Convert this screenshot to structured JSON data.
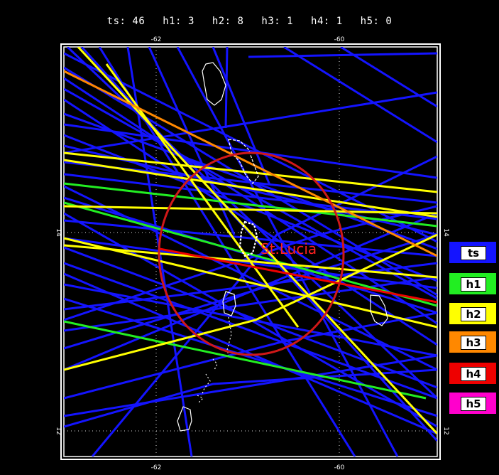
{
  "header": {
    "stats": [
      {
        "label": "ts:",
        "value": "46"
      },
      {
        "label": "h1:",
        "value": "3"
      },
      {
        "label": "h2:",
        "value": "8"
      },
      {
        "label": "h3:",
        "value": "1"
      },
      {
        "label": "h4:",
        "value": "1"
      },
      {
        "label": "h5:",
        "value": "0"
      }
    ]
  },
  "map": {
    "location_label": "St.Lucia",
    "lon_ticks": [
      "-62",
      "-60"
    ],
    "lat_ticks": [
      "14",
      "12"
    ],
    "circle_color": "#d01818",
    "location_label_color": "#ff2020"
  },
  "legend": [
    {
      "label": "ts",
      "color": "#1414ff"
    },
    {
      "label": "h1",
      "color": "#22ee22"
    },
    {
      "label": "h2",
      "color": "#ffff00"
    },
    {
      "label": "h3",
      "color": "#ff8800"
    },
    {
      "label": "h4",
      "color": "#ee0000"
    },
    {
      "label": "h5",
      "color": "#ff00cc"
    }
  ]
}
